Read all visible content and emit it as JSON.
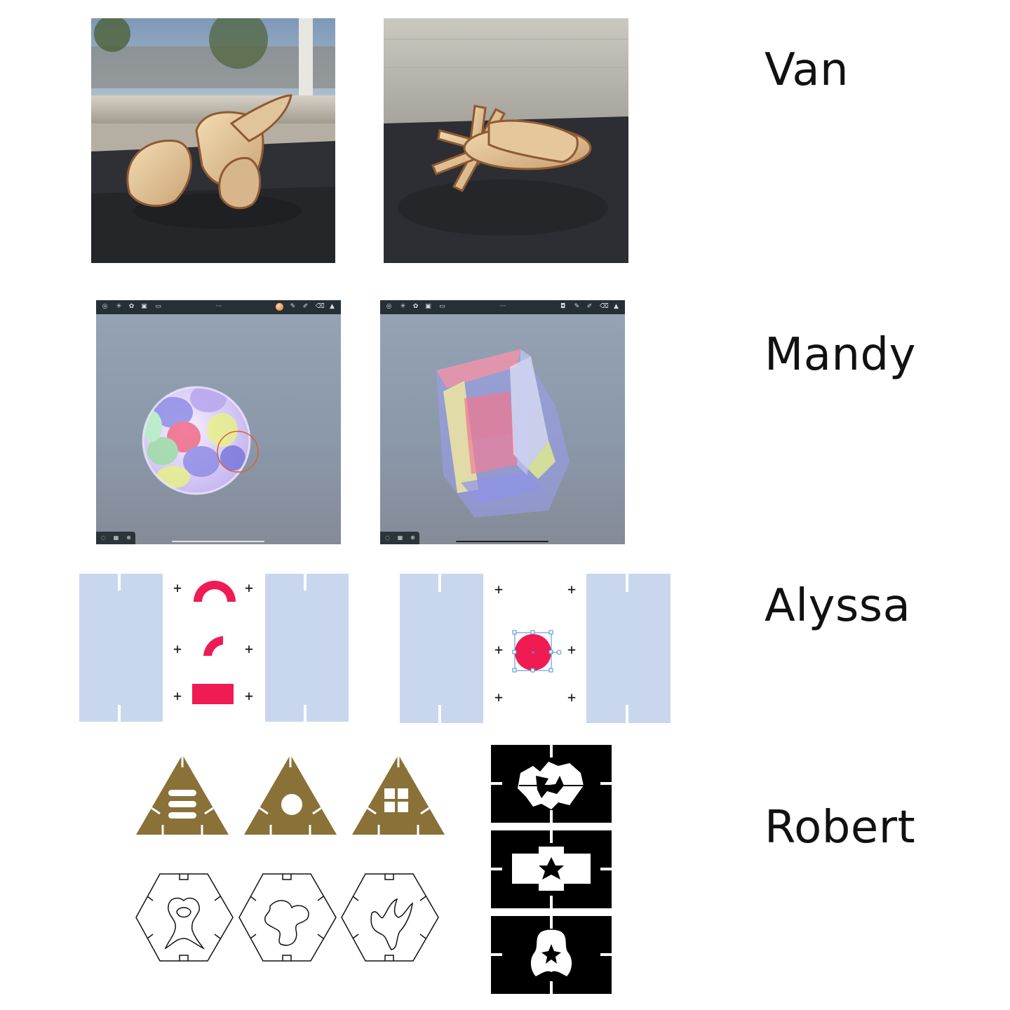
{
  "rows": [
    {
      "name": "Van"
    },
    {
      "name": "Mandy"
    },
    {
      "name": "Alyssa"
    },
    {
      "name": "Robert"
    }
  ],
  "colors": {
    "accent_red": "#ef1b52",
    "panel_blue": "#c8d7ee",
    "gold": "#8a7138",
    "toolbar_dark": "#253036",
    "selection_blue": "#4a8bd6"
  },
  "icons": [
    "globe-icon",
    "sun-icon",
    "settings-icon",
    "image-icon",
    "video-icon",
    "color-swatch-icon",
    "pen-icon",
    "brush-icon",
    "eraser-icon",
    "layers-icon",
    "camera-icon"
  ]
}
